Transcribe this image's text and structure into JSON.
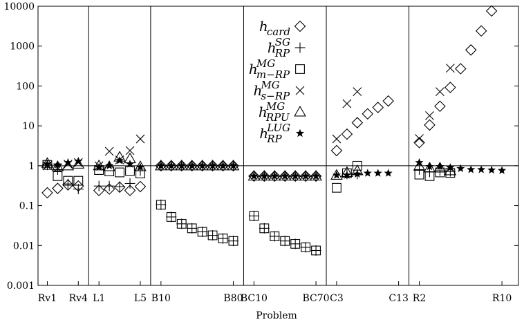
{
  "chart_data": {
    "type": "scatter",
    "xlabel": "Problem",
    "ylabel": "",
    "yscale": "log",
    "ylim": [
      0.001,
      10000
    ],
    "y_ticks": [
      "0.001",
      "0.01",
      "0.1",
      "1",
      "10",
      "100",
      "1000",
      "10000"
    ],
    "y_tick_values": [
      0.001,
      0.01,
      0.1,
      1,
      10,
      100,
      1000,
      10000
    ],
    "reference_line_y": 1,
    "groups": [
      {
        "start": 1,
        "end": 4,
        "labels": [
          "Rv1",
          "Rv4"
        ]
      },
      {
        "start": 5,
        "end": 9,
        "labels": [
          "L1",
          "L5"
        ]
      },
      {
        "start": 10,
        "end": 17,
        "labels": [
          "B10",
          "B80"
        ]
      },
      {
        "start": 18,
        "end": 24,
        "labels": [
          "BC10",
          "BC70"
        ]
      },
      {
        "start": 25,
        "end": 31,
        "labels": [
          "C3",
          "C13"
        ]
      },
      {
        "start": 32,
        "end": 40,
        "labels": [
          "R2",
          "R10"
        ]
      }
    ],
    "legend_position": "top-center",
    "series": [
      {
        "key": "card",
        "marker": "diamond",
        "name_base": "h",
        "name_sup": "",
        "name_sub": "card",
        "points": [
          [
            1,
            0.21
          ],
          [
            2,
            0.27
          ],
          [
            3,
            0.33
          ],
          [
            4,
            0.31
          ],
          [
            5,
            0.24
          ],
          [
            6,
            0.26
          ],
          [
            7,
            0.29
          ],
          [
            8,
            0.24
          ],
          [
            9,
            0.3
          ],
          [
            10,
            1.0
          ],
          [
            11,
            1.0
          ],
          [
            12,
            1.0
          ],
          [
            13,
            1.0
          ],
          [
            14,
            1.0
          ],
          [
            15,
            1.0
          ],
          [
            16,
            1.0
          ],
          [
            17,
            1.0
          ],
          [
            18,
            0.55
          ],
          [
            19,
            0.55
          ],
          [
            20,
            0.55
          ],
          [
            21,
            0.55
          ],
          [
            22,
            0.55
          ],
          [
            23,
            0.55
          ],
          [
            24,
            0.55
          ],
          [
            25,
            2.4
          ],
          [
            26,
            6.2
          ],
          [
            27,
            12
          ],
          [
            28,
            20
          ],
          [
            29,
            29
          ],
          [
            30,
            42
          ],
          [
            32,
            3.8
          ],
          [
            33,
            10.5
          ],
          [
            34,
            31
          ],
          [
            35,
            92
          ],
          [
            36,
            270
          ],
          [
            37,
            800
          ],
          [
            38,
            2400
          ],
          [
            39,
            7600
          ]
        ]
      },
      {
        "key": "rp_sg",
        "marker": "plus",
        "name_base": "h",
        "name_sup": "SG",
        "name_sub": "RP",
        "points": [
          [
            1,
            1.05
          ],
          [
            2,
            0.8
          ],
          [
            3,
            0.35
          ],
          [
            4,
            0.26
          ],
          [
            5,
            0.31
          ],
          [
            6,
            0.31
          ],
          [
            7,
            0.3
          ],
          [
            8,
            0.36
          ],
          [
            9,
            0.75
          ],
          [
            10,
            1.0
          ],
          [
            11,
            1.0
          ],
          [
            12,
            1.0
          ],
          [
            13,
            1.0
          ],
          [
            14,
            1.0
          ],
          [
            15,
            1.0
          ],
          [
            16,
            1.0
          ],
          [
            17,
            1.0
          ],
          [
            10,
            0.105
          ],
          [
            11,
            0.052
          ],
          [
            12,
            0.035
          ],
          [
            13,
            0.027
          ],
          [
            14,
            0.022
          ],
          [
            15,
            0.018
          ],
          [
            16,
            0.015
          ],
          [
            17,
            0.013
          ],
          [
            18,
            0.055
          ],
          [
            19,
            0.027
          ],
          [
            20,
            0.017
          ],
          [
            21,
            0.013
          ],
          [
            22,
            0.011
          ],
          [
            23,
            0.009
          ],
          [
            24,
            0.0075
          ],
          [
            18,
            0.55
          ],
          [
            19,
            0.55
          ],
          [
            20,
            0.55
          ],
          [
            21,
            0.55
          ],
          [
            22,
            0.55
          ],
          [
            23,
            0.55
          ],
          [
            24,
            0.55
          ],
          [
            26,
            0.62
          ],
          [
            27,
            0.62
          ],
          [
            32,
            0.8
          ],
          [
            33,
            0.7
          ],
          [
            34,
            0.75
          ],
          [
            35,
            0.72
          ]
        ]
      },
      {
        "key": "mrp_mg",
        "marker": "square",
        "name_base": "h",
        "name_sup": "MG",
        "name_sub": "m−RP",
        "points": [
          [
            1,
            1.05
          ],
          [
            2,
            0.55
          ],
          [
            3,
            0.42
          ],
          [
            4,
            0.42
          ],
          [
            5,
            0.78
          ],
          [
            6,
            0.72
          ],
          [
            7,
            0.68
          ],
          [
            8,
            0.74
          ],
          [
            9,
            0.64
          ],
          [
            10,
            0.105
          ],
          [
            11,
            0.052
          ],
          [
            12,
            0.035
          ],
          [
            13,
            0.027
          ],
          [
            14,
            0.022
          ],
          [
            15,
            0.018
          ],
          [
            16,
            0.015
          ],
          [
            17,
            0.013
          ],
          [
            18,
            0.055
          ],
          [
            19,
            0.027
          ],
          [
            20,
            0.017
          ],
          [
            21,
            0.013
          ],
          [
            22,
            0.011
          ],
          [
            23,
            0.009
          ],
          [
            24,
            0.0075
          ],
          [
            25,
            0.28
          ],
          [
            26,
            0.65
          ],
          [
            27,
            1.0
          ],
          [
            32,
            0.6
          ],
          [
            33,
            0.55
          ],
          [
            34,
            0.68
          ],
          [
            35,
            0.66
          ]
        ]
      },
      {
        "key": "srp_mg",
        "marker": "cross",
        "name_base": "h",
        "name_sup": "MG",
        "name_sub": "s−RP",
        "points": [
          [
            1,
            1.0
          ],
          [
            2,
            0.88
          ],
          [
            3,
            1.1
          ],
          [
            4,
            1.2
          ],
          [
            5,
            1.0
          ],
          [
            6,
            2.3
          ],
          [
            7,
            1.4
          ],
          [
            8,
            2.4
          ],
          [
            9,
            4.7
          ],
          [
            25,
            4.7
          ],
          [
            26,
            36
          ],
          [
            27,
            72
          ],
          [
            32,
            4.8
          ],
          [
            33,
            18
          ],
          [
            34,
            72
          ],
          [
            35,
            280
          ]
        ]
      },
      {
        "key": "rpu_mg",
        "marker": "triangle",
        "name_base": "h",
        "name_sup": "MG",
        "name_sub": "RPU",
        "points": [
          [
            1,
            1.15
          ],
          [
            2,
            0.95
          ],
          [
            3,
            1.0
          ],
          [
            4,
            1.1
          ],
          [
            5,
            1.0
          ],
          [
            6,
            0.95
          ],
          [
            7,
            1.65
          ],
          [
            8,
            1.5
          ],
          [
            9,
            0.95
          ],
          [
            10,
            1.0
          ],
          [
            11,
            1.0
          ],
          [
            12,
            1.0
          ],
          [
            13,
            1.0
          ],
          [
            14,
            1.0
          ],
          [
            15,
            1.0
          ],
          [
            16,
            1.0
          ],
          [
            17,
            1.0
          ],
          [
            18,
            0.55
          ],
          [
            19,
            0.55
          ],
          [
            20,
            0.55
          ],
          [
            21,
            0.55
          ],
          [
            22,
            0.55
          ],
          [
            23,
            0.55
          ],
          [
            24,
            0.55
          ],
          [
            25,
            0.58
          ],
          [
            26,
            0.68
          ],
          [
            27,
            0.75
          ],
          [
            32,
            0.98
          ],
          [
            33,
            0.88
          ],
          [
            34,
            0.88
          ],
          [
            35,
            0.75
          ]
        ]
      },
      {
        "key": "rp_lug",
        "marker": "star",
        "name_base": "h",
        "name_sup": "LUG",
        "name_sub": "RP",
        "points": [
          [
            1,
            1.1
          ],
          [
            2,
            1.05
          ],
          [
            3,
            1.2
          ],
          [
            4,
            1.3
          ],
          [
            5,
            0.92
          ],
          [
            6,
            1.0
          ],
          [
            7,
            1.35
          ],
          [
            8,
            1.1
          ],
          [
            9,
            0.92
          ],
          [
            10,
            1.0
          ],
          [
            11,
            1.0
          ],
          [
            12,
            1.0
          ],
          [
            13,
            1.0
          ],
          [
            14,
            1.0
          ],
          [
            15,
            1.0
          ],
          [
            16,
            1.0
          ],
          [
            17,
            1.0
          ],
          [
            18,
            0.55
          ],
          [
            19,
            0.55
          ],
          [
            20,
            0.55
          ],
          [
            21,
            0.55
          ],
          [
            22,
            0.55
          ],
          [
            23,
            0.55
          ],
          [
            24,
            0.55
          ],
          [
            25,
            0.58
          ],
          [
            26,
            0.58
          ],
          [
            27,
            0.62
          ],
          [
            28,
            0.65
          ],
          [
            29,
            0.65
          ],
          [
            30,
            0.65
          ],
          [
            32,
            1.2
          ],
          [
            33,
            0.95
          ],
          [
            34,
            0.95
          ],
          [
            35,
            0.9
          ],
          [
            36,
            0.85
          ],
          [
            37,
            0.8
          ],
          [
            38,
            0.8
          ],
          [
            39,
            0.78
          ],
          [
            40,
            0.76
          ]
        ]
      }
    ]
  }
}
